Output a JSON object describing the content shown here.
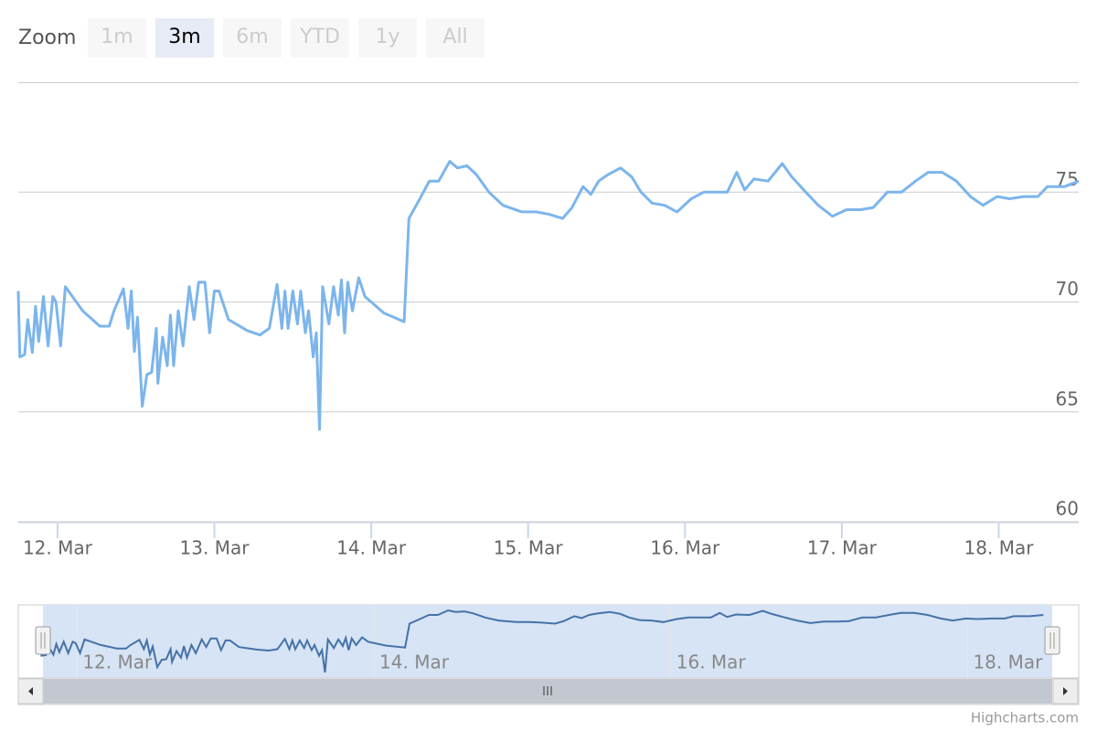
{
  "range_selector": {
    "label": "Zoom",
    "buttons": [
      "1m",
      "3m",
      "6m",
      "YTD",
      "1y",
      "All"
    ],
    "selected": 1
  },
  "chart_data": {
    "type": "line",
    "color": "#7cb5ec",
    "x": [
      11.75,
      11.76,
      11.79,
      11.81,
      11.84,
      11.86,
      11.88,
      11.91,
      11.94,
      11.97,
      11.99,
      12.02,
      12.05,
      12.16,
      12.27,
      12.33,
      12.36,
      12.42,
      12.45,
      12.47,
      12.49,
      12.51,
      12.54,
      12.57,
      12.6,
      12.63,
      12.64,
      12.67,
      12.7,
      12.72,
      12.74,
      12.77,
      12.8,
      12.84,
      12.87,
      12.9,
      12.94,
      12.97,
      13,
      13.03,
      13.09,
      13.21,
      13.29,
      13.35,
      13.4,
      13.43,
      13.45,
      13.47,
      13.5,
      13.53,
      13.55,
      13.58,
      13.6,
      13.63,
      13.65,
      13.67,
      13.69,
      13.73,
      13.76,
      13.79,
      13.81,
      13.83,
      13.85,
      13.88,
      13.92,
      13.96,
      14.08,
      14.21,
      14.24,
      14.31,
      14.37,
      14.43,
      14.5,
      14.55,
      14.61,
      14.67,
      14.75,
      14.84,
      14.96,
      15.05,
      15.13,
      15.22,
      15.28,
      15.35,
      15.4,
      15.45,
      15.51,
      15.59,
      15.66,
      15.72,
      15.79,
      15.87,
      15.95,
      16.04,
      16.12,
      16.21,
      16.27,
      16.33,
      16.38,
      16.44,
      16.53,
      16.62,
      16.68,
      16.77,
      16.85,
      16.94,
      17.03,
      17.12,
      17.2,
      17.29,
      17.38,
      17.47,
      17.55,
      17.64,
      17.73,
      17.82,
      17.9,
      17.99,
      18.07,
      18.16,
      18.25,
      18.31,
      18.42,
      18.51
    ],
    "values": [
      70.5,
      67.5,
      67.6,
      69.2,
      67.7,
      69.8,
      68.2,
      70.25,
      68,
      70.25,
      70,
      68,
      70.7,
      69.6,
      68.9,
      68.9,
      69.6,
      70.6,
      68.8,
      70.5,
      67.75,
      69.3,
      65.25,
      66.7,
      66.8,
      68.8,
      66.3,
      68.4,
      67.1,
      69.4,
      67.1,
      69.6,
      68,
      70.7,
      69.2,
      70.9,
      70.9,
      68.6,
      70.5,
      70.5,
      69.2,
      68.7,
      68.5,
      68.8,
      70.8,
      68.8,
      70.5,
      68.8,
      70.5,
      69,
      70.5,
      68.6,
      69.6,
      67.5,
      68.6,
      64.2,
      70.7,
      69,
      70.7,
      69.4,
      71,
      68.6,
      70.9,
      69.6,
      71.1,
      70.25,
      69.5,
      69.1,
      73.8,
      74.7,
      75.5,
      75.5,
      76.4,
      76.1,
      76.2,
      75.8,
      75,
      74.4,
      74.1,
      74.1,
      74,
      73.8,
      74.3,
      75.25,
      74.9,
      75.5,
      75.8,
      76.1,
      75.7,
      75,
      74.5,
      74.4,
      74.1,
      74.7,
      75,
      75,
      75,
      75.9,
      75.1,
      75.6,
      75.5,
      76.3,
      75.7,
      75,
      74.4,
      73.9,
      74.2,
      74.2,
      74.3,
      75,
      75,
      75.5,
      75.9,
      75.9,
      75.5,
      74.8,
      74.4,
      74.8,
      74.7,
      74.8,
      74.8,
      75.25,
      75.25,
      75.5
    ],
    "xlim": [
      11.75,
      18.51
    ],
    "xticks": [
      {
        "value": 12,
        "label": "12. Mar"
      },
      {
        "value": 13,
        "label": "13. Mar"
      },
      {
        "value": 14,
        "label": "14. Mar"
      },
      {
        "value": 15,
        "label": "15. Mar"
      },
      {
        "value": 16,
        "label": "16. Mar"
      },
      {
        "value": 17,
        "label": "17. Mar"
      },
      {
        "value": 18,
        "label": "18. Mar"
      }
    ],
    "ylim": [
      60,
      80
    ],
    "yticks": [
      60,
      65,
      70,
      75
    ],
    "grid": true
  },
  "navigator": {
    "xlim": [
      11.77,
      18.57
    ],
    "xticks": [
      {
        "value": 12,
        "label": "12. Mar"
      },
      {
        "value": 14,
        "label": "14. Mar"
      },
      {
        "value": 16,
        "label": "16. Mar"
      },
      {
        "value": 18,
        "label": "18. Mar"
      }
    ]
  },
  "credits": "Highcharts.com"
}
